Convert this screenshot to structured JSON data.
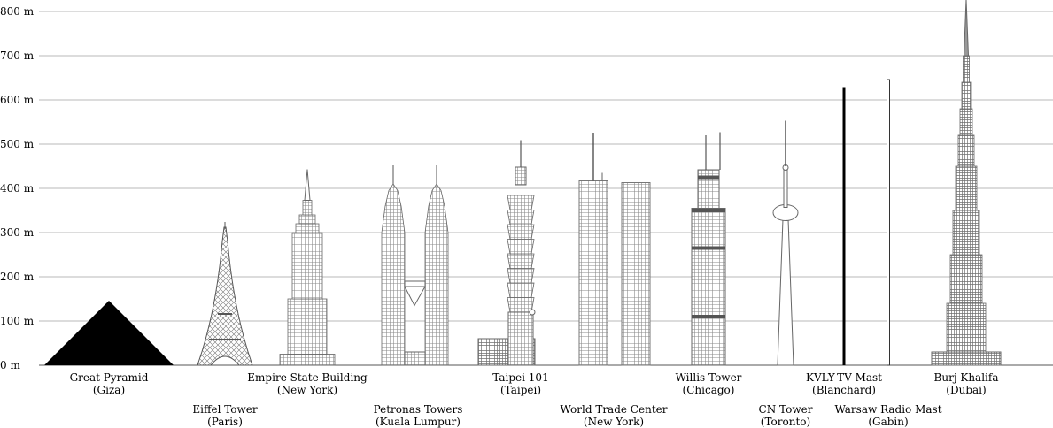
{
  "chart_data": {
    "type": "bar",
    "title": "",
    "xlabel": "",
    "ylabel": "",
    "y_unit": "m",
    "ylim": [
      0,
      800
    ],
    "yticks": [
      "0 m",
      "100 m",
      "200 m",
      "300 m",
      "400 m",
      "500 m",
      "600 m",
      "700 m",
      "800 m"
    ],
    "grid": true,
    "structures": [
      {
        "name": "Great Pyramid",
        "place": "(Giza)",
        "height": 146
      },
      {
        "name": "Eiffel Tower",
        "place": "(Paris)",
        "height": 324
      },
      {
        "name": "Empire State Building",
        "place": "(New York)",
        "height": 443
      },
      {
        "name": "Petronas Towers",
        "place": "(Kuala Lumpur)",
        "height": 452
      },
      {
        "name": "Taipei 101",
        "place": "(Taipei)",
        "height": 509
      },
      {
        "name": "World Trade Center",
        "place": "(New York)",
        "height": 526
      },
      {
        "name": "Willis Tower",
        "place": "(Chicago)",
        "height": 527
      },
      {
        "name": "CN Tower",
        "place": "(Toronto)",
        "height": 553
      },
      {
        "name": "KVLY-TV Mast",
        "place": "(Blanchard)",
        "height": 629
      },
      {
        "name": "Warsaw Radio Mast",
        "place": "(Gabin)",
        "height": 646
      },
      {
        "name": "Burj Khalifa",
        "place": "(Dubai)",
        "height": 828
      }
    ]
  }
}
